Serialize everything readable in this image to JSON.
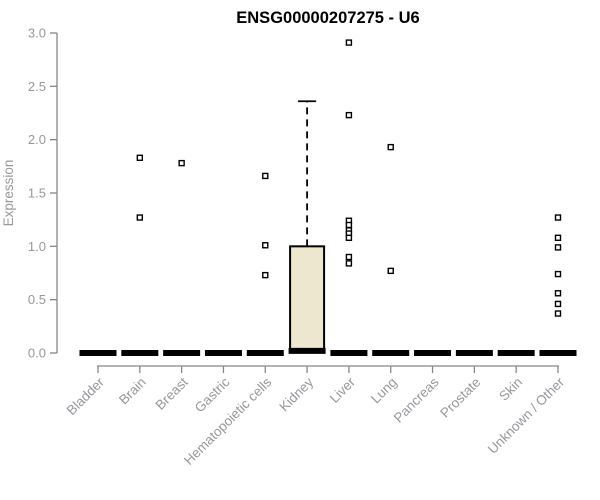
{
  "chart_data": {
    "type": "box",
    "title": "ENSG00000207275 - U6",
    "ylabel": "Expression",
    "xlabel": "",
    "ylim": [
      0.0,
      3.0
    ],
    "yticks": [
      0.0,
      0.5,
      1.0,
      1.5,
      2.0,
      2.5,
      3.0
    ],
    "grid": false,
    "legend": "none",
    "categories": [
      "Bladder",
      "Brain",
      "Breast",
      "Gastric",
      "Hematopoietic cells",
      "Kidney",
      "Liver",
      "Lung",
      "Pancreas",
      "Prostate",
      "Skin",
      "Unknown / Other"
    ],
    "boxes": [
      {
        "category": "Bladder",
        "q1": 0,
        "median": 0,
        "q3": 0,
        "whisker_low": 0,
        "whisker_high": 0,
        "outliers": []
      },
      {
        "category": "Brain",
        "q1": 0,
        "median": 0,
        "q3": 0,
        "whisker_low": 0,
        "whisker_high": 0,
        "outliers": [
          1.83,
          1.27
        ]
      },
      {
        "category": "Breast",
        "q1": 0,
        "median": 0,
        "q3": 0,
        "whisker_low": 0,
        "whisker_high": 0,
        "outliers": [
          1.78
        ]
      },
      {
        "category": "Gastric",
        "q1": 0,
        "median": 0,
        "q3": 0,
        "whisker_low": 0,
        "whisker_high": 0,
        "outliers": []
      },
      {
        "category": "Hematopoietic cells",
        "q1": 0,
        "median": 0,
        "q3": 0,
        "whisker_low": 0,
        "whisker_high": 0,
        "outliers": [
          1.66,
          1.01,
          0.73
        ]
      },
      {
        "category": "Kidney",
        "q1": 0.01,
        "median": 0.02,
        "q3": 1.0,
        "whisker_low": 0,
        "whisker_high": 2.36,
        "outliers": []
      },
      {
        "category": "Liver",
        "q1": 0,
        "median": 0,
        "q3": 0,
        "whisker_low": 0,
        "whisker_high": 0,
        "outliers": [
          2.91,
          2.23,
          1.24,
          1.2,
          1.15,
          1.12,
          1.08,
          0.9,
          0.84
        ]
      },
      {
        "category": "Lung",
        "q1": 0,
        "median": 0,
        "q3": 0,
        "whisker_low": 0,
        "whisker_high": 0,
        "outliers": [
          1.93,
          0.77
        ]
      },
      {
        "category": "Pancreas",
        "q1": 0,
        "median": 0,
        "q3": 0,
        "whisker_low": 0,
        "whisker_high": 0,
        "outliers": []
      },
      {
        "category": "Prostate",
        "q1": 0,
        "median": 0,
        "q3": 0,
        "whisker_low": 0,
        "whisker_high": 0,
        "outliers": []
      },
      {
        "category": "Skin",
        "q1": 0,
        "median": 0,
        "q3": 0,
        "whisker_low": 0,
        "whisker_high": 0,
        "outliers": []
      },
      {
        "category": "Unknown / Other",
        "q1": 0,
        "median": 0,
        "q3": 0,
        "whisker_low": 0,
        "whisker_high": 0,
        "outliers": [
          1.27,
          1.08,
          0.99,
          0.74,
          0.56,
          0.46,
          0.37
        ]
      }
    ],
    "colors": {
      "background": "#ffffff",
      "title": "#000000",
      "axis": "#85878a",
      "tick_label": "#95989c",
      "box_fill": "#ece7ce",
      "box_border": "#000000",
      "median": "#000000",
      "outlier_fill": "#ffffff",
      "outlier_stroke": "#000000"
    }
  }
}
